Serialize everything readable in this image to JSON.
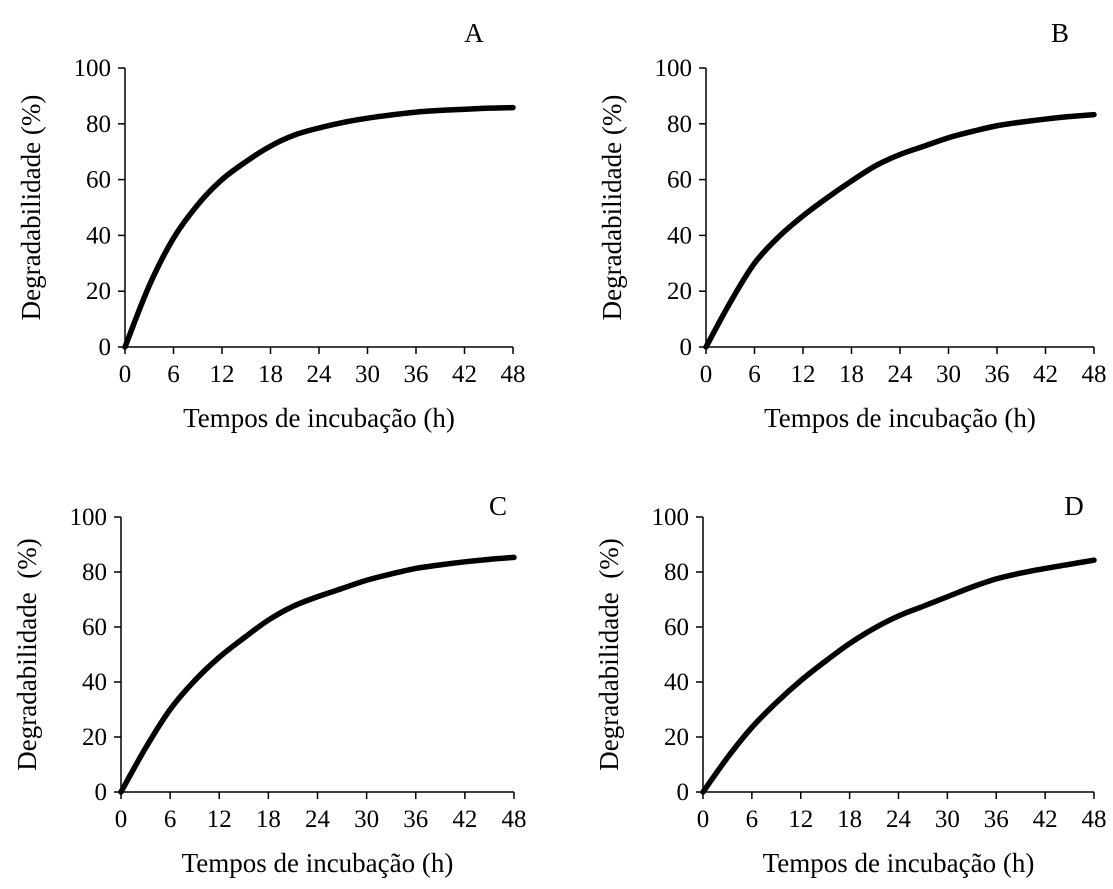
{
  "chart_data": [
    {
      "type": "line",
      "panel_label": "A",
      "xlabel": "Tempos de incubação (h)",
      "ylabel": "Degradabilidade (%)",
      "xlim": [
        0,
        48
      ],
      "ylim": [
        0,
        100
      ],
      "x_ticks": [
        "0",
        "6",
        "12",
        "18",
        "24",
        "30",
        "36",
        "42",
        "48"
      ],
      "y_ticks": [
        "0",
        "20",
        "40",
        "60",
        "80",
        "100"
      ],
      "grid": false,
      "series": [
        {
          "x": [
            0,
            3,
            6,
            9,
            12,
            15,
            18,
            21,
            24,
            27,
            30,
            33,
            36,
            39,
            42,
            45,
            48
          ],
          "y": [
            0,
            22,
            39,
            51,
            60,
            66.5,
            72,
            76,
            78.5,
            80.5,
            82,
            83.2,
            84.2,
            84.8,
            85.2,
            85.6,
            85.8
          ]
        }
      ]
    },
    {
      "type": "line",
      "panel_label": "B",
      "xlabel": "Tempos de incubação (h)",
      "ylabel": "Degradabilidade (%)",
      "xlim": [
        0,
        48
      ],
      "ylim": [
        0,
        100
      ],
      "x_ticks": [
        "0",
        "6",
        "12",
        "18",
        "24",
        "30",
        "36",
        "42",
        "48"
      ],
      "y_ticks": [
        "0",
        "20",
        "40",
        "60",
        "80",
        "100"
      ],
      "grid": false,
      "series": [
        {
          "x": [
            0,
            3,
            6,
            9,
            12,
            15,
            18,
            21,
            24,
            27,
            30,
            33,
            36,
            39,
            42,
            45,
            48
          ],
          "y": [
            0,
            16,
            30,
            39.5,
            47,
            53.5,
            59.5,
            65,
            69,
            72,
            75,
            77.3,
            79.3,
            80.6,
            81.7,
            82.6,
            83.3
          ]
        }
      ]
    },
    {
      "type": "line",
      "panel_label": "C",
      "xlabel": "Tempos de incubação (h)",
      "ylabel": "Degradabilidade  (%)",
      "xlim": [
        0,
        48
      ],
      "ylim": [
        0,
        100
      ],
      "x_ticks": [
        "0",
        "6",
        "12",
        "18",
        "24",
        "30",
        "36",
        "42",
        "48"
      ],
      "y_ticks": [
        "0",
        "20",
        "40",
        "60",
        "80",
        "100"
      ],
      "grid": false,
      "series": [
        {
          "x": [
            0,
            3,
            6,
            9,
            12,
            15,
            18,
            21,
            24,
            27,
            30,
            33,
            36,
            39,
            42,
            45,
            48
          ],
          "y": [
            0,
            16,
            30,
            40.5,
            49,
            56,
            62.5,
            67.5,
            71,
            74,
            77,
            79.3,
            81.3,
            82.6,
            83.7,
            84.6,
            85.3
          ]
        }
      ]
    },
    {
      "type": "line",
      "panel_label": "D",
      "xlabel": "Tempos de incubação (h)",
      "ylabel": "Degradabilidade  (%)",
      "xlim": [
        0,
        48
      ],
      "ylim": [
        0,
        100
      ],
      "x_ticks": [
        "0",
        "6",
        "12",
        "18",
        "24",
        "30",
        "36",
        "42",
        "48"
      ],
      "y_ticks": [
        "0",
        "20",
        "40",
        "60",
        "80",
        "100"
      ],
      "grid": false,
      "series": [
        {
          "x": [
            0,
            3,
            6,
            9,
            12,
            15,
            18,
            21,
            24,
            27,
            30,
            33,
            36,
            39,
            42,
            45,
            48
          ],
          "y": [
            0,
            12.5,
            23.5,
            32.5,
            40.5,
            47.5,
            54,
            59.5,
            64,
            67.5,
            71,
            74.5,
            77.5,
            79.6,
            81.3,
            82.8,
            84.3
          ]
        }
      ]
    }
  ]
}
